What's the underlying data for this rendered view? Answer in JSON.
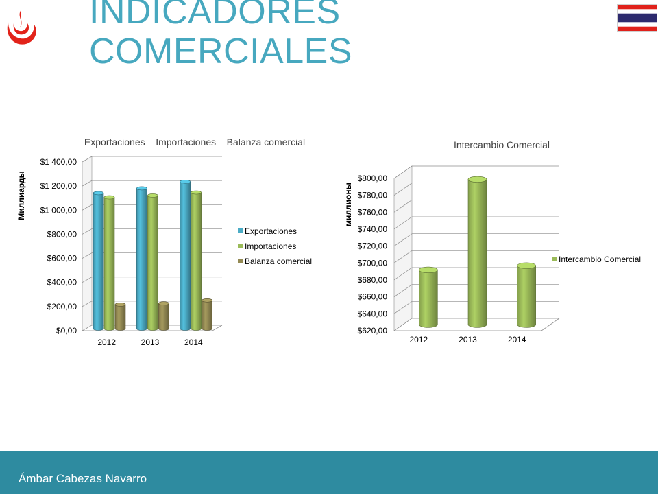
{
  "slide": {
    "title_line1": "INDICADORES",
    "title_line2": "COMERCIALES",
    "footer_author": "Ámbar Cabezas Navarro"
  },
  "colors": {
    "title": "#47a8bf",
    "footer": "#2e8ba0",
    "exportaciones": "#4bacc6",
    "importaciones": "#9bbb59",
    "balanza": "#948a54",
    "intercambio": "#9bbb59"
  },
  "chart_data": [
    {
      "type": "bar",
      "title": "Exportaciones – Importaciones – Balanza comercial",
      "ylabel": "Миллиарды",
      "xlabel": "",
      "categories": [
        "2012",
        "2013",
        "2014"
      ],
      "series": [
        {
          "name": "Exportaciones",
          "values": [
            1130,
            1170,
            1225
          ]
        },
        {
          "name": "Importaciones",
          "values": [
            1095,
            1110,
            1135
          ]
        },
        {
          "name": "Balanza comercial",
          "values": [
            205,
            215,
            240
          ]
        }
      ],
      "ylim": [
        0,
        1400
      ],
      "yticks": [
        "$0,00",
        "$200,00",
        "$400,00",
        "$600,00",
        "$800,00",
        "$1 000,00",
        "$1 200,00",
        "$1 400,00"
      ],
      "grid": true,
      "legend": "right"
    },
    {
      "type": "bar",
      "title": "Intercambio Comercial",
      "ylabel": "миллионы",
      "xlabel": "",
      "categories": [
        "2012",
        "2013",
        "2014"
      ],
      "series": [
        {
          "name": "Intercambio Comercial",
          "values": [
            687,
            794,
            692
          ]
        }
      ],
      "ylim": [
        620,
        800
      ],
      "yticks": [
        "$620,00",
        "$640,00",
        "$660,00",
        "$680,00",
        "$700,00",
        "$720,00",
        "$740,00",
        "$760,00",
        "$780,00",
        "$800,00"
      ],
      "grid": true,
      "legend": "right"
    }
  ]
}
